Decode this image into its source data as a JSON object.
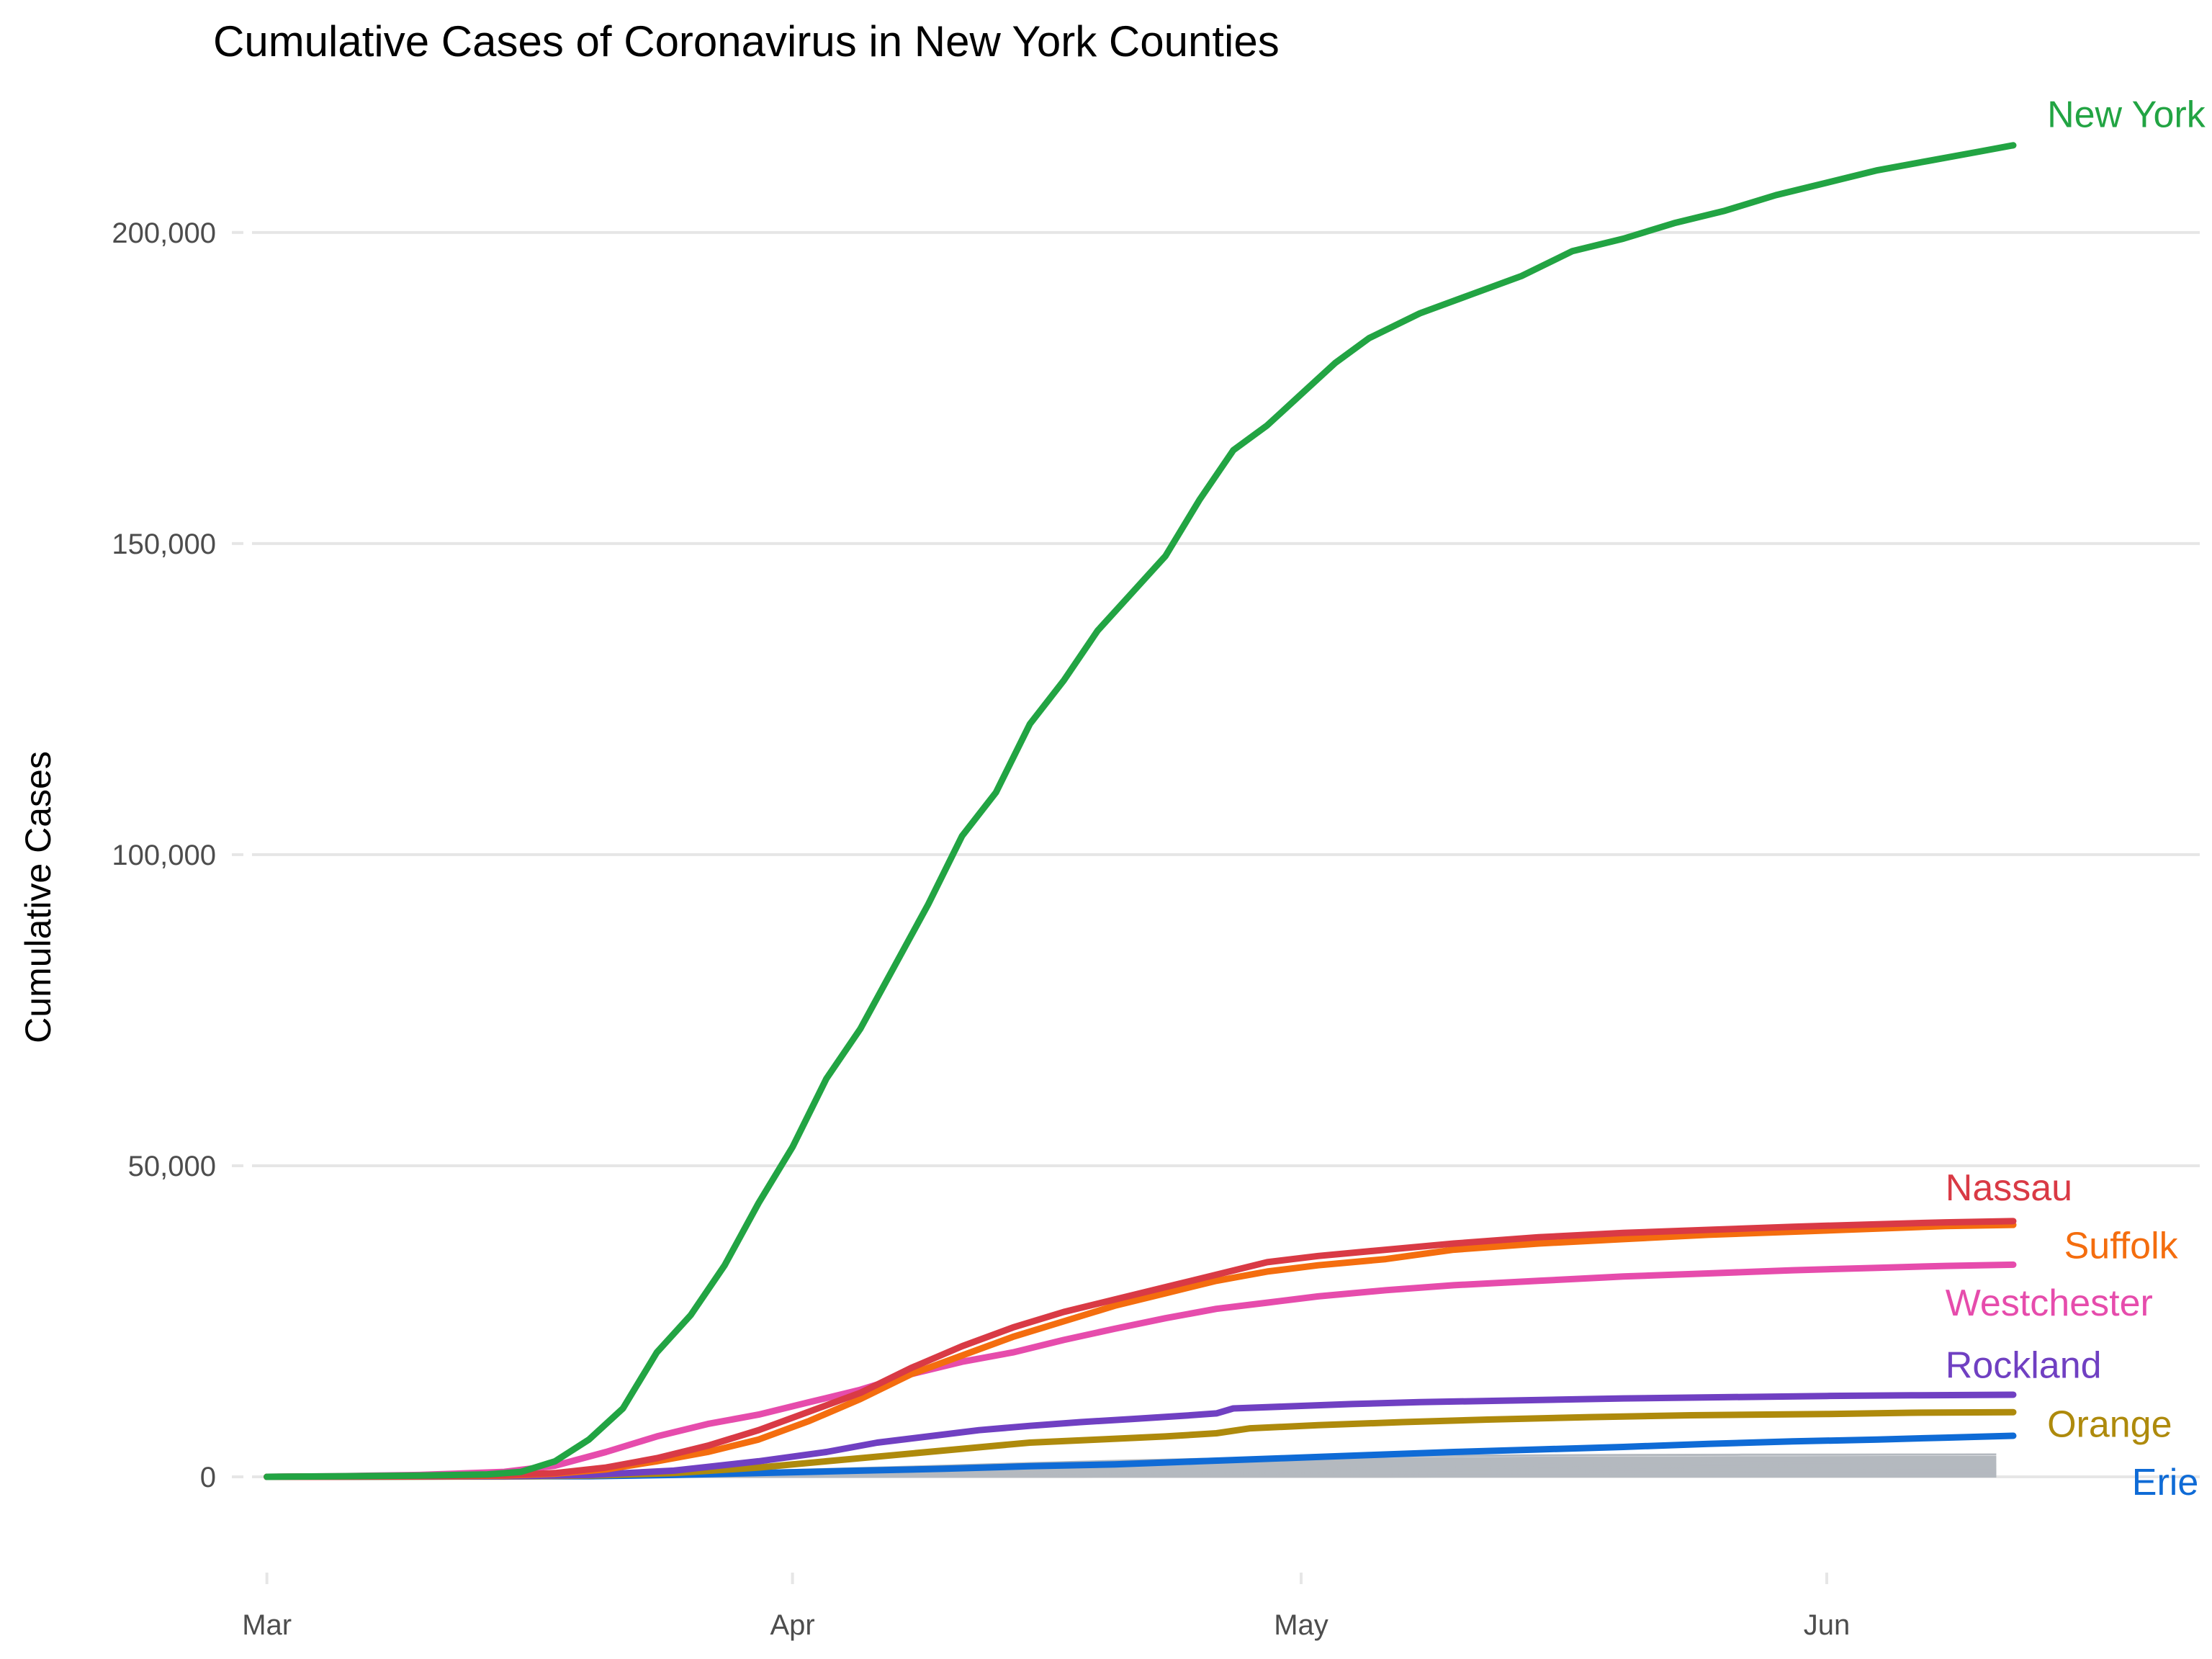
{
  "chart_data": {
    "type": "line",
    "title": "Cumulative Cases of Coronavirus in New York Counties",
    "xlabel": "",
    "ylabel": "Cumulative Cases",
    "x_axis": {
      "type": "date",
      "range": [
        "2020-02-27",
        "2020-06-23"
      ],
      "ticks": [
        {
          "date": "2020-03-01",
          "label": "Mar"
        },
        {
          "date": "2020-04-01",
          "label": "Apr"
        },
        {
          "date": "2020-05-01",
          "label": "May"
        },
        {
          "date": "2020-06-01",
          "label": "Jun"
        }
      ]
    },
    "y_axis": {
      "range": [
        -14000,
        220000
      ],
      "ticks": [
        {
          "value": 0,
          "label": "0"
        },
        {
          "value": 50000,
          "label": "50,000"
        },
        {
          "value": 100000,
          "label": "100,000"
        },
        {
          "value": 150000,
          "label": "150,000"
        },
        {
          "value": 200000,
          "label": "200,000"
        }
      ]
    },
    "grid": "horizontal",
    "legend": "direct labels at line ends",
    "series": [
      {
        "name": "New York City",
        "color": "#22a443",
        "label_date": "2020-06-14",
        "label_value": 219000,
        "points": [
          [
            "2020-03-01",
            0
          ],
          [
            "2020-03-05",
            100
          ],
          [
            "2020-03-10",
            200
          ],
          [
            "2020-03-14",
            400
          ],
          [
            "2020-03-16",
            800
          ],
          [
            "2020-03-18",
            2500
          ],
          [
            "2020-03-20",
            6000
          ],
          [
            "2020-03-22",
            11000
          ],
          [
            "2020-03-24",
            20000
          ],
          [
            "2020-03-26",
            26000
          ],
          [
            "2020-03-28",
            34000
          ],
          [
            "2020-03-30",
            44000
          ],
          [
            "2020-04-01",
            53000
          ],
          [
            "2020-04-03",
            64000
          ],
          [
            "2020-04-05",
            72000
          ],
          [
            "2020-04-07",
            82000
          ],
          [
            "2020-04-09",
            92000
          ],
          [
            "2020-04-11",
            103000
          ],
          [
            "2020-04-13",
            110000
          ],
          [
            "2020-04-15",
            121000
          ],
          [
            "2020-04-17",
            128000
          ],
          [
            "2020-04-19",
            136000
          ],
          [
            "2020-04-21",
            142000
          ],
          [
            "2020-04-23",
            148000
          ],
          [
            "2020-04-25",
            157000
          ],
          [
            "2020-04-27",
            165000
          ],
          [
            "2020-04-29",
            169000
          ],
          [
            "2020-05-01",
            174000
          ],
          [
            "2020-05-03",
            179000
          ],
          [
            "2020-05-05",
            183000
          ],
          [
            "2020-05-08",
            187000
          ],
          [
            "2020-05-11",
            190000
          ],
          [
            "2020-05-14",
            193000
          ],
          [
            "2020-05-17",
            197000
          ],
          [
            "2020-05-20",
            199000
          ],
          [
            "2020-05-23",
            201500
          ],
          [
            "2020-05-26",
            203500
          ],
          [
            "2020-05-29",
            206000
          ],
          [
            "2020-06-01",
            208000
          ],
          [
            "2020-06-04",
            210000
          ],
          [
            "2020-06-07",
            211500
          ],
          [
            "2020-06-10",
            213000
          ],
          [
            "2020-06-12",
            214000
          ]
        ]
      },
      {
        "name": "Nassau",
        "color": "#d93a45",
        "label_date": "2020-06-08",
        "label_value": 46500,
        "points": [
          [
            "2020-03-01",
            0
          ],
          [
            "2020-03-10",
            100
          ],
          [
            "2020-03-15",
            300
          ],
          [
            "2020-03-18",
            600
          ],
          [
            "2020-03-21",
            1500
          ],
          [
            "2020-03-24",
            3000
          ],
          [
            "2020-03-27",
            5000
          ],
          [
            "2020-03-30",
            7500
          ],
          [
            "2020-04-02",
            10500
          ],
          [
            "2020-04-05",
            13500
          ],
          [
            "2020-04-08",
            17500
          ],
          [
            "2020-04-11",
            21000
          ],
          [
            "2020-04-14",
            24000
          ],
          [
            "2020-04-17",
            26500
          ],
          [
            "2020-04-20",
            28500
          ],
          [
            "2020-04-23",
            30500
          ],
          [
            "2020-04-26",
            32500
          ],
          [
            "2020-04-29",
            34500
          ],
          [
            "2020-05-02",
            35500
          ],
          [
            "2020-05-06",
            36500
          ],
          [
            "2020-05-10",
            37500
          ],
          [
            "2020-05-15",
            38500
          ],
          [
            "2020-05-20",
            39200
          ],
          [
            "2020-05-25",
            39700
          ],
          [
            "2020-05-30",
            40200
          ],
          [
            "2020-06-04",
            40600
          ],
          [
            "2020-06-08",
            40900
          ],
          [
            "2020-06-12",
            41100
          ]
        ]
      },
      {
        "name": "Suffolk",
        "color": "#f46d0e",
        "label_date": "2020-06-15",
        "label_value": 37200,
        "points": [
          [
            "2020-03-01",
            0
          ],
          [
            "2020-03-10",
            80
          ],
          [
            "2020-03-15",
            200
          ],
          [
            "2020-03-18",
            500
          ],
          [
            "2020-03-21",
            1200
          ],
          [
            "2020-03-24",
            2500
          ],
          [
            "2020-03-27",
            4000
          ],
          [
            "2020-03-30",
            6000
          ],
          [
            "2020-04-02",
            9000
          ],
          [
            "2020-04-05",
            12500
          ],
          [
            "2020-04-08",
            16500
          ],
          [
            "2020-04-11",
            19500
          ],
          [
            "2020-04-14",
            22500
          ],
          [
            "2020-04-17",
            25000
          ],
          [
            "2020-04-20",
            27500
          ],
          [
            "2020-04-23",
            29500
          ],
          [
            "2020-04-26",
            31500
          ],
          [
            "2020-04-29",
            33000
          ],
          [
            "2020-05-02",
            34000
          ],
          [
            "2020-05-06",
            35000
          ],
          [
            "2020-05-10",
            36500
          ],
          [
            "2020-05-15",
            37500
          ],
          [
            "2020-05-20",
            38200
          ],
          [
            "2020-05-25",
            38900
          ],
          [
            "2020-05-30",
            39400
          ],
          [
            "2020-06-04",
            39900
          ],
          [
            "2020-06-08",
            40300
          ],
          [
            "2020-06-12",
            40500
          ]
        ]
      },
      {
        "name": "Westchester",
        "color": "#e64cac",
        "label_date": "2020-06-08",
        "label_value": 28000,
        "points": [
          [
            "2020-03-01",
            0
          ],
          [
            "2020-03-05",
            100
          ],
          [
            "2020-03-10",
            300
          ],
          [
            "2020-03-15",
            800
          ],
          [
            "2020-03-18",
            1800
          ],
          [
            "2020-03-21",
            4000
          ],
          [
            "2020-03-24",
            6500
          ],
          [
            "2020-03-27",
            8500
          ],
          [
            "2020-03-30",
            10000
          ],
          [
            "2020-04-02",
            12000
          ],
          [
            "2020-04-05",
            14000
          ],
          [
            "2020-04-08",
            16500
          ],
          [
            "2020-04-11",
            18500
          ],
          [
            "2020-04-14",
            20000
          ],
          [
            "2020-04-17",
            22000
          ],
          [
            "2020-04-20",
            23800
          ],
          [
            "2020-04-23",
            25500
          ],
          [
            "2020-04-26",
            27000
          ],
          [
            "2020-04-29",
            28000
          ],
          [
            "2020-05-02",
            29000
          ],
          [
            "2020-05-06",
            30000
          ],
          [
            "2020-05-10",
            30800
          ],
          [
            "2020-05-15",
            31500
          ],
          [
            "2020-05-20",
            32200
          ],
          [
            "2020-05-25",
            32700
          ],
          [
            "2020-05-30",
            33200
          ],
          [
            "2020-06-04",
            33600
          ],
          [
            "2020-06-08",
            33900
          ],
          [
            "2020-06-12",
            34100
          ]
        ]
      },
      {
        "name": "Rockland",
        "color": "#7040c2",
        "label_date": "2020-06-08",
        "label_value": 18000,
        "points": [
          [
            "2020-03-01",
            0
          ],
          [
            "2020-03-15",
            100
          ],
          [
            "2020-03-20",
            300
          ],
          [
            "2020-03-25",
            1000
          ],
          [
            "2020-03-30",
            2500
          ],
          [
            "2020-04-03",
            4000
          ],
          [
            "2020-04-06",
            5500
          ],
          [
            "2020-04-09",
            6500
          ],
          [
            "2020-04-12",
            7500
          ],
          [
            "2020-04-15",
            8200
          ],
          [
            "2020-04-18",
            8800
          ],
          [
            "2020-04-21",
            9300
          ],
          [
            "2020-04-24",
            9800
          ],
          [
            "2020-04-26",
            10200
          ],
          [
            "2020-04-27",
            11000
          ],
          [
            "2020-04-30",
            11300
          ],
          [
            "2020-05-04",
            11700
          ],
          [
            "2020-05-08",
            12000
          ],
          [
            "2020-05-14",
            12300
          ],
          [
            "2020-05-20",
            12600
          ],
          [
            "2020-05-26",
            12800
          ],
          [
            "2020-06-01",
            13000
          ],
          [
            "2020-06-06",
            13100
          ],
          [
            "2020-06-12",
            13200
          ]
        ]
      },
      {
        "name": "Orange",
        "color": "#ae8a0c",
        "label_date": "2020-06-14",
        "label_value": 8500,
        "points": [
          [
            "2020-03-01",
            0
          ],
          [
            "2020-03-15",
            50
          ],
          [
            "2020-03-20",
            200
          ],
          [
            "2020-03-25",
            600
          ],
          [
            "2020-03-30",
            1500
          ],
          [
            "2020-04-03",
            2500
          ],
          [
            "2020-04-07",
            3500
          ],
          [
            "2020-04-11",
            4500
          ],
          [
            "2020-04-15",
            5500
          ],
          [
            "2020-04-19",
            6000
          ],
          [
            "2020-04-23",
            6500
          ],
          [
            "2020-04-26",
            7000
          ],
          [
            "2020-04-28",
            7800
          ],
          [
            "2020-05-02",
            8300
          ],
          [
            "2020-05-07",
            8800
          ],
          [
            "2020-05-12",
            9200
          ],
          [
            "2020-05-18",
            9600
          ],
          [
            "2020-05-24",
            9900
          ],
          [
            "2020-06-01",
            10100
          ],
          [
            "2020-06-06",
            10300
          ],
          [
            "2020-06-12",
            10400
          ]
        ]
      },
      {
        "name": "Erie",
        "color": "#0f6bd6",
        "label_date": "2020-06-19",
        "label_value": -800,
        "points": [
          [
            "2020-03-01",
            0
          ],
          [
            "2020-03-20",
            100
          ],
          [
            "2020-03-25",
            300
          ],
          [
            "2020-03-30",
            600
          ],
          [
            "2020-04-05",
            1000
          ],
          [
            "2020-04-10",
            1300
          ],
          [
            "2020-04-15",
            1700
          ],
          [
            "2020-04-20",
            2000
          ],
          [
            "2020-04-25",
            2500
          ],
          [
            "2020-04-30",
            3000
          ],
          [
            "2020-05-05",
            3500
          ],
          [
            "2020-05-10",
            4000
          ],
          [
            "2020-05-15",
            4400
          ],
          [
            "2020-05-20",
            4800
          ],
          [
            "2020-05-25",
            5300
          ],
          [
            "2020-05-30",
            5700
          ],
          [
            "2020-06-04",
            6000
          ],
          [
            "2020-06-08",
            6300
          ],
          [
            "2020-06-12",
            6600
          ]
        ]
      }
    ],
    "other_counties": {
      "color": "#b4b9bf",
      "final_values": [
        3600,
        3200,
        2900,
        2600,
        2300,
        2000,
        1800,
        1600,
        1400,
        1200,
        1000,
        850,
        700,
        550,
        420,
        300,
        200,
        120,
        60
      ]
    }
  }
}
